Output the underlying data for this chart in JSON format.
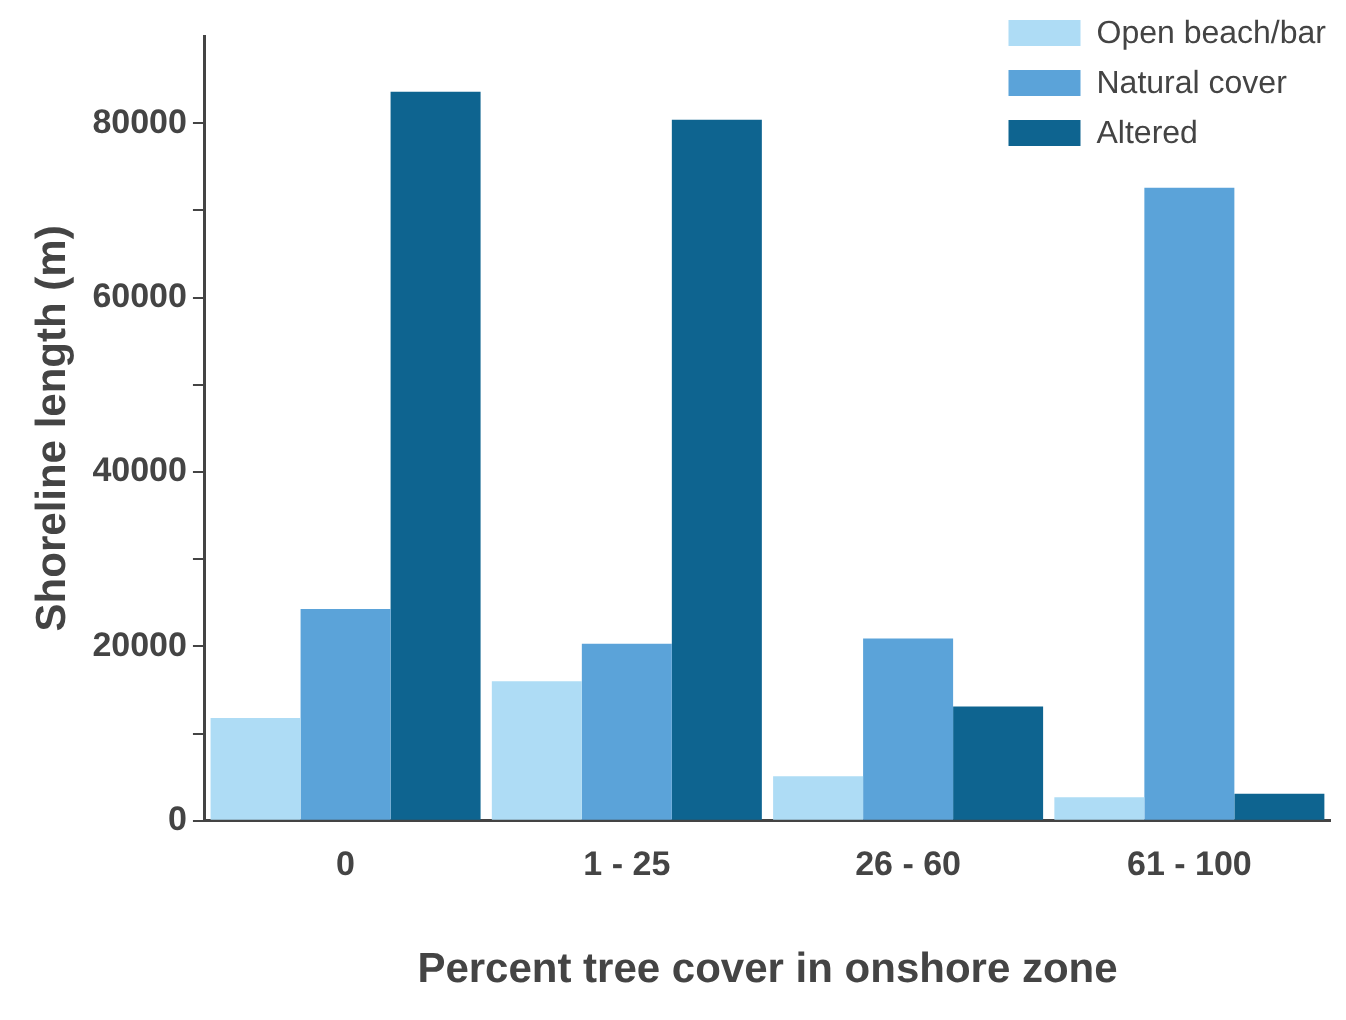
{
  "chart_data": {
    "type": "bar",
    "xlabel": "Percent tree cover in onshore zone",
    "ylabel": "Shoreline length (m)",
    "categories": [
      "0",
      "1 - 25",
      "26 - 60",
      "61 - 100"
    ],
    "series": [
      {
        "name": "Open beach/bar",
        "color": "#aedcf5",
        "values": [
          11800,
          16000,
          5100,
          2700
        ]
      },
      {
        "name": "Natural cover",
        "color": "#5ba3d9",
        "values": [
          24300,
          20300,
          20900,
          72600
        ]
      },
      {
        "name": "Altered",
        "color": "#0e6490",
        "values": [
          83600,
          80400,
          13100,
          3100
        ]
      }
    ],
    "ylim": [
      0,
      90000
    ],
    "yticks": [
      0,
      {
        "value": 10000,
        "label": null
      },
      20000,
      {
        "value": 30000,
        "label": null
      },
      40000,
      {
        "value": 50000,
        "label": null
      },
      60000,
      {
        "value": 70000,
        "label": null
      },
      80000
    ],
    "grid": false,
    "legend": "top right"
  }
}
